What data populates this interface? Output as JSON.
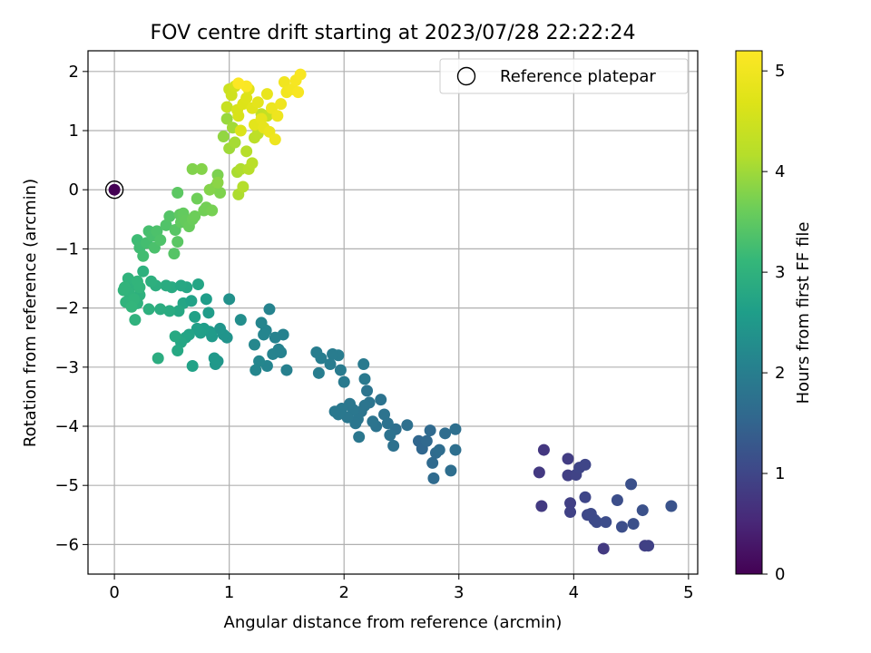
{
  "chart_data": {
    "type": "scatter",
    "title": "FOV centre drift starting at 2023/07/28 22:22:24",
    "xlabel": "Angular distance from reference (arcmin)",
    "ylabel": "Rotation from reference (arcmin)",
    "xlim": [
      -0.23,
      5.08
    ],
    "ylim": [
      -6.5,
      2.35
    ],
    "xticks": [
      0,
      1,
      2,
      3,
      4,
      5
    ],
    "yticks": [
      2,
      1,
      0,
      -1,
      -2,
      -3,
      -4,
      -5,
      -6
    ],
    "grid": true,
    "legend": {
      "placement": "top-right",
      "entries": [
        "Reference platepar"
      ]
    },
    "reference_point": {
      "x": 0,
      "y": 0
    },
    "colorbar": {
      "label": "Hours from first FF file",
      "min": 0,
      "max": 5.2,
      "ticks": [
        0,
        1,
        2,
        3,
        4,
        5
      ],
      "colormap": "viridis"
    },
    "points": [
      [
        0.0,
        0.0,
        0.0
      ],
      [
        3.74,
        -4.4,
        0.75
      ],
      [
        3.7,
        -4.78,
        0.78
      ],
      [
        3.72,
        -5.35,
        0.8
      ],
      [
        3.95,
        -4.55,
        0.85
      ],
      [
        3.95,
        -4.83,
        0.88
      ],
      [
        3.97,
        -5.3,
        0.9
      ],
      [
        3.97,
        -5.45,
        0.92
      ],
      [
        4.02,
        -4.82,
        0.95
      ],
      [
        4.05,
        -4.7,
        0.97
      ],
      [
        4.1,
        -4.65,
        1.0
      ],
      [
        4.1,
        -5.2,
        1.0
      ],
      [
        4.12,
        -5.5,
        1.02
      ],
      [
        4.15,
        -5.48,
        1.05
      ],
      [
        4.18,
        -5.58,
        1.05
      ],
      [
        4.2,
        -5.62,
        1.08
      ],
      [
        4.26,
        -6.07,
        0.8
      ],
      [
        4.28,
        -5.62,
        1.1
      ],
      [
        4.38,
        -5.25,
        1.12
      ],
      [
        4.42,
        -5.7,
        1.12
      ],
      [
        4.5,
        -4.98,
        1.15
      ],
      [
        4.52,
        -5.65,
        1.15
      ],
      [
        4.6,
        -5.42,
        1.18
      ],
      [
        4.62,
        -6.02,
        0.9
      ],
      [
        4.65,
        -6.02,
        0.92
      ],
      [
        4.85,
        -5.35,
        1.2
      ],
      [
        2.65,
        -4.25,
        1.55
      ],
      [
        2.68,
        -4.38,
        1.55
      ],
      [
        2.72,
        -4.25,
        1.58
      ],
      [
        2.75,
        -4.07,
        1.6
      ],
      [
        2.77,
        -4.62,
        1.6
      ],
      [
        2.78,
        -4.88,
        1.62
      ],
      [
        2.8,
        -4.45,
        1.62
      ],
      [
        2.83,
        -4.4,
        1.65
      ],
      [
        2.88,
        -4.12,
        1.65
      ],
      [
        2.93,
        -4.75,
        1.68
      ],
      [
        2.97,
        -4.05,
        1.7
      ],
      [
        2.97,
        -4.4,
        1.7
      ],
      [
        2.55,
        -3.98,
        1.72
      ],
      [
        2.45,
        -4.05,
        1.72
      ],
      [
        2.43,
        -4.33,
        1.74
      ],
      [
        2.4,
        -4.15,
        1.75
      ],
      [
        2.38,
        -3.95,
        1.76
      ],
      [
        2.35,
        -3.8,
        1.77
      ],
      [
        2.32,
        -3.55,
        1.78
      ],
      [
        2.28,
        -4.0,
        1.78
      ],
      [
        2.25,
        -3.92,
        1.79
      ],
      [
        2.22,
        -3.6,
        1.8
      ],
      [
        2.2,
        -3.4,
        1.8
      ],
      [
        2.18,
        -3.65,
        1.81
      ],
      [
        2.15,
        -3.75,
        1.82
      ],
      [
        2.12,
        -3.88,
        1.83
      ],
      [
        2.1,
        -3.95,
        1.84
      ],
      [
        2.08,
        -3.72,
        1.85
      ],
      [
        2.05,
        -3.62,
        1.86
      ],
      [
        2.03,
        -3.85,
        1.86
      ],
      [
        1.98,
        -3.7,
        1.87
      ],
      [
        1.95,
        -3.8,
        1.88
      ],
      [
        1.92,
        -3.75,
        1.88
      ],
      [
        2.13,
        -4.18,
        1.85
      ],
      [
        2.18,
        -3.2,
        1.9
      ],
      [
        2.17,
        -2.95,
        1.92
      ],
      [
        2.0,
        -3.25,
        1.92
      ],
      [
        1.97,
        -3.05,
        1.94
      ],
      [
        1.95,
        -2.8,
        1.95
      ],
      [
        1.9,
        -2.78,
        1.95
      ],
      [
        1.88,
        -2.95,
        1.96
      ],
      [
        1.8,
        -2.85,
        1.97
      ],
      [
        1.78,
        -3.1,
        1.97
      ],
      [
        1.76,
        -2.75,
        1.98
      ],
      [
        1.5,
        -3.05,
        2.05
      ],
      [
        1.43,
        -2.7,
        2.07
      ],
      [
        1.4,
        -2.5,
        2.08
      ],
      [
        1.38,
        -2.78,
        2.1
      ],
      [
        1.35,
        -2.02,
        2.1
      ],
      [
        1.33,
        -2.98,
        2.12
      ],
      [
        1.32,
        -2.38,
        2.12
      ],
      [
        1.3,
        -2.45,
        2.13
      ],
      [
        1.28,
        -2.25,
        2.14
      ],
      [
        1.26,
        -2.9,
        2.15
      ],
      [
        1.23,
        -3.05,
        2.16
      ],
      [
        1.22,
        -2.62,
        2.17
      ],
      [
        1.47,
        -2.45,
        2.06
      ],
      [
        1.45,
        -2.75,
        2.08
      ],
      [
        1.1,
        -2.2,
        2.3
      ],
      [
        1.0,
        -1.85,
        2.35
      ],
      [
        0.98,
        -2.5,
        2.4
      ],
      [
        0.95,
        -2.45,
        2.42
      ],
      [
        0.92,
        -2.35,
        2.44
      ],
      [
        0.9,
        -2.9,
        2.46
      ],
      [
        0.88,
        -2.95,
        2.48
      ],
      [
        0.87,
        -2.85,
        2.5
      ],
      [
        0.85,
        -2.48,
        2.52
      ],
      [
        0.83,
        -2.4,
        2.54
      ],
      [
        0.82,
        -2.08,
        2.56
      ],
      [
        0.8,
        -1.85,
        2.58
      ],
      [
        0.78,
        -2.35,
        2.6
      ],
      [
        0.75,
        -2.42,
        2.62
      ],
      [
        0.72,
        -2.35,
        2.64
      ],
      [
        0.7,
        -2.15,
        2.66
      ],
      [
        0.68,
        -2.98,
        2.68
      ],
      [
        0.65,
        -2.45,
        2.7
      ],
      [
        0.62,
        -2.5,
        2.72
      ],
      [
        0.6,
        -1.92,
        2.74
      ],
      [
        0.58,
        -2.58,
        2.76
      ],
      [
        0.56,
        -2.05,
        2.78
      ],
      [
        0.55,
        -2.72,
        2.8
      ],
      [
        0.53,
        -2.48,
        2.82
      ],
      [
        0.5,
        -1.65,
        2.84
      ],
      [
        0.48,
        -2.05,
        2.86
      ],
      [
        0.45,
        -1.62,
        2.88
      ],
      [
        0.4,
        -2.02,
        2.9
      ],
      [
        0.38,
        -2.85,
        2.9
      ],
      [
        0.36,
        -1.62,
        2.92
      ],
      [
        0.73,
        -1.6,
        2.74
      ],
      [
        0.63,
        -1.65,
        2.76
      ],
      [
        0.58,
        -1.62,
        2.78
      ],
      [
        0.67,
        -1.88,
        2.68
      ],
      [
        0.32,
        -1.55,
        2.95
      ],
      [
        0.3,
        -2.02,
        2.96
      ],
      [
        0.25,
        -1.38,
        2.97
      ],
      [
        0.22,
        -1.78,
        2.98
      ],
      [
        0.2,
        -1.92,
        2.99
      ],
      [
        0.18,
        -2.2,
        3.0
      ],
      [
        0.16,
        -1.62,
        3.0
      ],
      [
        0.14,
        -1.85,
        3.01
      ],
      [
        0.13,
        -1.75,
        3.02
      ],
      [
        0.12,
        -1.5,
        3.02
      ],
      [
        0.1,
        -1.9,
        3.03
      ],
      [
        0.09,
        -1.65,
        3.04
      ],
      [
        0.08,
        -1.7,
        3.04
      ],
      [
        0.2,
        -1.55,
        3.05
      ],
      [
        0.22,
        -1.65,
        3.06
      ],
      [
        0.17,
        -1.85,
        3.06
      ],
      [
        0.15,
        -1.98,
        3.07
      ],
      [
        0.2,
        -0.85,
        3.2
      ],
      [
        0.22,
        -0.98,
        3.22
      ],
      [
        0.25,
        -1.12,
        3.24
      ],
      [
        0.28,
        -0.9,
        3.26
      ],
      [
        0.3,
        -0.7,
        3.28
      ],
      [
        0.33,
        -0.78,
        3.3
      ],
      [
        0.35,
        -0.98,
        3.32
      ],
      [
        0.37,
        -0.7,
        3.34
      ],
      [
        0.4,
        -0.85,
        3.36
      ],
      [
        0.45,
        -0.6,
        3.38
      ],
      [
        0.48,
        -0.45,
        3.4
      ],
      [
        0.52,
        -1.08,
        3.42
      ],
      [
        0.53,
        -0.68,
        3.44
      ],
      [
        0.55,
        -0.88,
        3.46
      ],
      [
        0.55,
        -0.05,
        3.48
      ],
      [
        0.57,
        -0.42,
        3.5
      ],
      [
        0.58,
        -0.55,
        3.52
      ],
      [
        0.6,
        -0.4,
        3.54
      ],
      [
        0.62,
        -0.52,
        3.56
      ],
      [
        0.65,
        -0.62,
        3.58
      ],
      [
        0.68,
        -0.5,
        3.6
      ],
      [
        0.7,
        -0.45,
        3.62
      ],
      [
        0.72,
        -0.15,
        3.64
      ],
      [
        0.78,
        -0.35,
        3.66
      ],
      [
        0.8,
        -0.3,
        3.68
      ],
      [
        0.85,
        -0.35,
        3.7
      ],
      [
        0.88,
        0.05,
        3.72
      ],
      [
        0.9,
        0.25,
        3.74
      ],
      [
        0.92,
        -0.05,
        3.76
      ],
      [
        0.68,
        0.35,
        3.78
      ],
      [
        0.76,
        0.35,
        3.8
      ],
      [
        0.83,
        0.0,
        3.8
      ],
      [
        0.9,
        0.12,
        3.85
      ],
      [
        0.95,
        0.9,
        3.9
      ],
      [
        0.98,
        1.2,
        3.95
      ],
      [
        1.0,
        0.7,
        4.0
      ],
      [
        1.03,
        1.05,
        4.02
      ],
      [
        1.05,
        0.8,
        4.05
      ],
      [
        1.07,
        0.3,
        4.08
      ],
      [
        1.08,
        -0.08,
        4.1
      ],
      [
        1.1,
        0.35,
        4.12
      ],
      [
        1.12,
        0.05,
        4.15
      ],
      [
        1.15,
        0.65,
        4.18
      ],
      [
        1.17,
        0.35,
        4.2
      ],
      [
        1.2,
        0.45,
        4.22
      ],
      [
        1.22,
        0.88,
        4.25
      ],
      [
        1.25,
        0.95,
        4.28
      ],
      [
        1.28,
        1.28,
        4.3
      ],
      [
        1.3,
        1.05,
        4.32
      ],
      [
        1.33,
        1.25,
        4.35
      ],
      [
        0.98,
        1.4,
        4.4
      ],
      [
        1.0,
        1.7,
        4.45
      ],
      [
        1.02,
        1.6,
        4.5
      ],
      [
        1.05,
        1.75,
        4.55
      ],
      [
        1.07,
        1.35,
        4.6
      ],
      [
        1.08,
        1.25,
        4.62
      ],
      [
        1.1,
        1.0,
        4.65
      ],
      [
        1.12,
        1.45,
        4.68
      ],
      [
        1.15,
        1.55,
        4.7
      ],
      [
        1.17,
        1.7,
        4.72
      ],
      [
        1.2,
        1.38,
        4.75
      ],
      [
        1.22,
        1.1,
        4.78
      ],
      [
        1.25,
        1.48,
        4.8
      ],
      [
        1.28,
        1.2,
        4.82
      ],
      [
        1.3,
        1.05,
        4.85
      ],
      [
        1.33,
        1.62,
        4.88
      ],
      [
        1.35,
        0.98,
        4.9
      ],
      [
        1.37,
        1.38,
        4.92
      ],
      [
        1.4,
        0.85,
        4.95
      ],
      [
        1.42,
        1.25,
        4.96
      ],
      [
        1.45,
        1.45,
        4.98
      ],
      [
        1.48,
        1.82,
        5.0
      ],
      [
        1.5,
        1.65,
        5.02
      ],
      [
        1.55,
        1.7,
        5.05
      ],
      [
        1.58,
        1.85,
        5.08
      ],
      [
        1.6,
        1.65,
        5.1
      ],
      [
        1.62,
        1.95,
        5.12
      ],
      [
        1.15,
        1.75,
        5.15
      ],
      [
        1.08,
        1.8,
        5.18
      ]
    ]
  }
}
